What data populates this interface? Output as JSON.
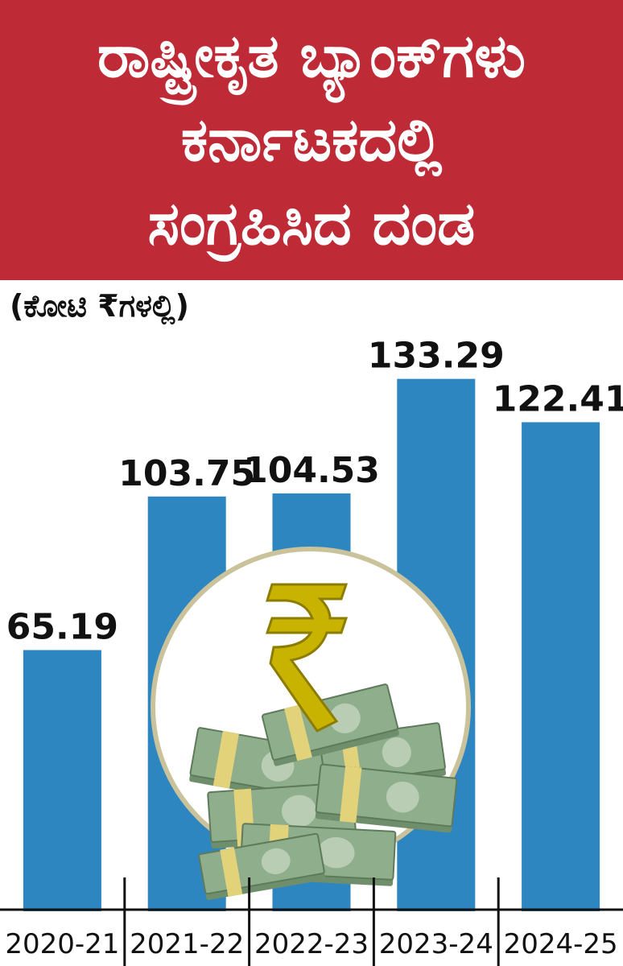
{
  "header": {
    "title_lines": [
      "ರಾಷ್ಟ್ರೀಕೃತ ಬ್ಯಾಂಕ್‌ಗಳು",
      "ಕರ್ನಾಟಕದಲ್ಲಿ",
      "ಸಂಗ್ರಹಿಸಿದ ದಂಡ"
    ]
  },
  "chart_data": {
    "type": "bar",
    "title": "ರಾಷ್ಟ್ರೀಕೃತ ಬ್ಯಾಂಕ್‌ಗಳು ಕರ್ನಾಟಕದಲ್ಲಿ ಸಂಗ್ರಹಿಸಿದ ದಂಡ",
    "unit_label": "(ಕೋಟಿ ₹ಗಳಲ್ಲಿ)",
    "categories": [
      "2020-21",
      "2021-22",
      "2022-23",
      "2023-24",
      "2024-25"
    ],
    "values": [
      65.19,
      103.75,
      104.53,
      133.29,
      122.41
    ],
    "data_labels": [
      "65.19",
      "103.75",
      "104.53",
      "133.29",
      "122.41"
    ],
    "ylim": [
      0,
      150
    ],
    "grid": false,
    "legend": "none"
  },
  "colors": {
    "banner": "#be2a36",
    "bar": "#2e86c1",
    "text": "#111111",
    "axis": "#111111",
    "coin_ring": "#c9c29a",
    "rupee_gold": "#c8b400",
    "money_green": "#8fae8c"
  },
  "decoration": {
    "icon": "rupee-money-stack-icon"
  }
}
